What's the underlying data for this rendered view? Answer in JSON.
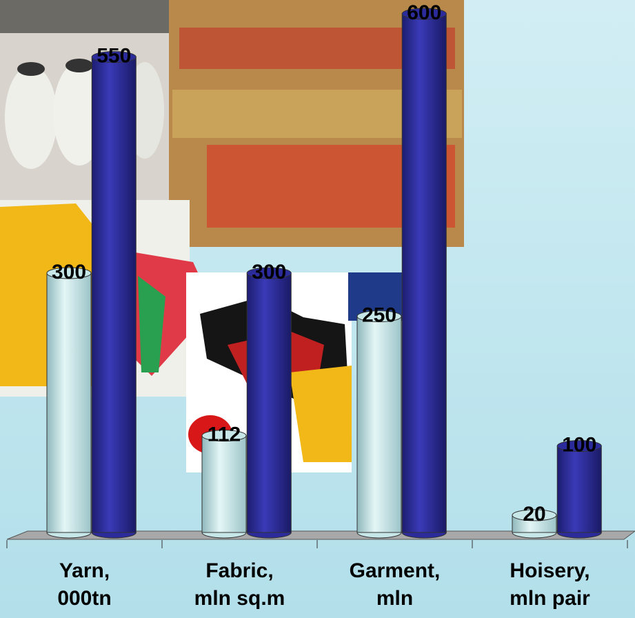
{
  "chart_data": {
    "type": "bar3d",
    "categories": [
      "Yarn,\n000tn",
      "Fabric,\nmln sq.m",
      "Garment,\nmln",
      "Hoisery,\nmln pair"
    ],
    "series": [
      {
        "color": "#c6e6e8",
        "values": [
          300,
          112,
          250,
          20
        ]
      },
      {
        "color": "#2b2b9c",
        "values": [
          550,
          300,
          600,
          100
        ]
      }
    ],
    "ylim": [
      0,
      600
    ]
  }
}
